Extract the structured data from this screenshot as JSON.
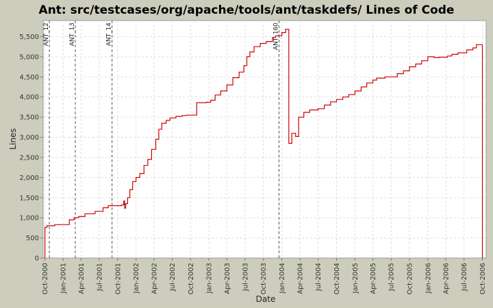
{
  "chart_data": {
    "type": "line",
    "title": "Ant: src/testcases/org/apache/tools/ant/taskdefs/ Lines of Code",
    "xlabel": "Date",
    "ylabel": "Lines",
    "ylim": [
      0,
      5900
    ],
    "xlim": [
      "2000-09-23",
      "2006-10-20"
    ],
    "yticks": [
      0,
      500,
      1000,
      1500,
      2000,
      2500,
      3000,
      3500,
      4000,
      4500,
      5000,
      5500
    ],
    "xticks": [
      "2000-10-01",
      "2001-01-01",
      "2001-04-01",
      "2001-07-01",
      "2001-10-01",
      "2002-01-01",
      "2002-04-01",
      "2002-07-01",
      "2002-10-01",
      "2003-01-01",
      "2003-04-01",
      "2003-07-01",
      "2003-10-01",
      "2004-01-01",
      "2004-04-01",
      "2004-07-01",
      "2004-10-01",
      "2005-01-01",
      "2005-04-01",
      "2005-07-01",
      "2005-10-01",
      "2006-01-01",
      "2006-04-01",
      "2006-07-01",
      "2006-10-01"
    ],
    "xtick_labels": [
      "Oct-2000",
      "Jan-2001",
      "Apr-2001",
      "Jul-2001",
      "Oct-2001",
      "Jan-2002",
      "Apr-2002",
      "Jul-2002",
      "Oct-2002",
      "Jan-2003",
      "Apr-2003",
      "Jul-2003",
      "Oct-2003",
      "Jan-2004",
      "Apr-2004",
      "Jul-2004",
      "Oct-2004",
      "Jan-2005",
      "Apr-2005",
      "Jul-2005",
      "Oct-2005",
      "Jan-2006",
      "Apr-2006",
      "Jul-2006",
      "Oct-2006"
    ],
    "grid": true,
    "line_color": "#cc0000",
    "marker_color": "#555555",
    "markers": [
      {
        "label": "ANT_12",
        "date": "2000-10-24"
      },
      {
        "label": "ANT_13",
        "date": "2001-03-03"
      },
      {
        "label": "ANT_14",
        "date": "2001-09-03"
      },
      {
        "label": "ANT_160",
        "date": "2003-12-18"
      }
    ],
    "series": [
      {
        "step": true,
        "points": [
          [
            "2000-10-02",
            0
          ],
          [
            "2000-10-02",
            760
          ],
          [
            "2000-10-12",
            800
          ],
          [
            "2000-11-20",
            830
          ],
          [
            "2001-02-01",
            950
          ],
          [
            "2001-02-25",
            1000
          ],
          [
            "2001-03-20",
            1030
          ],
          [
            "2001-04-20",
            1100
          ],
          [
            "2001-06-10",
            1160
          ],
          [
            "2001-07-20",
            1250
          ],
          [
            "2001-08-15",
            1300
          ],
          [
            "2001-10-20",
            1320
          ],
          [
            "2001-11-01",
            1420
          ],
          [
            "2001-11-05",
            1240
          ],
          [
            "2001-11-10",
            1350
          ],
          [
            "2001-11-20",
            1500
          ],
          [
            "2001-12-01",
            1700
          ],
          [
            "2001-12-15",
            1900
          ],
          [
            "2002-01-01",
            2000
          ],
          [
            "2002-01-20",
            2100
          ],
          [
            "2002-02-10",
            2300
          ],
          [
            "2002-03-01",
            2450
          ],
          [
            "2002-03-20",
            2700
          ],
          [
            "2002-04-10",
            2950
          ],
          [
            "2002-04-25",
            3200
          ],
          [
            "2002-05-10",
            3350
          ],
          [
            "2002-06-01",
            3420
          ],
          [
            "2002-06-20",
            3480
          ],
          [
            "2002-07-20",
            3520
          ],
          [
            "2002-08-20",
            3540
          ],
          [
            "2002-09-10",
            3550
          ],
          [
            "2002-11-01",
            3860
          ],
          [
            "2002-12-20",
            3870
          ],
          [
            "2003-01-10",
            3920
          ],
          [
            "2003-02-01",
            4050
          ],
          [
            "2003-03-01",
            4150
          ],
          [
            "2003-04-01",
            4300
          ],
          [
            "2003-05-01",
            4480
          ],
          [
            "2003-06-01",
            4620
          ],
          [
            "2003-06-25",
            4780
          ],
          [
            "2003-07-10",
            5000
          ],
          [
            "2003-07-25",
            5120
          ],
          [
            "2003-08-15",
            5250
          ],
          [
            "2003-09-15",
            5330
          ],
          [
            "2003-10-15",
            5380
          ],
          [
            "2003-11-15",
            5480
          ],
          [
            "2003-12-01",
            5520
          ],
          [
            "2004-01-01",
            5600
          ],
          [
            "2004-01-20",
            5680
          ],
          [
            "2004-02-05",
            2850
          ],
          [
            "2004-02-20",
            3100
          ],
          [
            "2004-03-10",
            3020
          ],
          [
            "2004-03-25",
            3500
          ],
          [
            "2004-04-20",
            3620
          ],
          [
            "2004-05-20",
            3680
          ],
          [
            "2004-07-01",
            3710
          ],
          [
            "2004-08-01",
            3800
          ],
          [
            "2004-09-01",
            3880
          ],
          [
            "2004-10-01",
            3940
          ],
          [
            "2004-11-01",
            4000
          ],
          [
            "2004-12-01",
            4060
          ],
          [
            "2005-01-01",
            4150
          ],
          [
            "2005-02-01",
            4250
          ],
          [
            "2005-03-01",
            4350
          ],
          [
            "2005-04-01",
            4420
          ],
          [
            "2005-04-20",
            4470
          ],
          [
            "2005-06-01",
            4500
          ],
          [
            "2005-08-01",
            4580
          ],
          [
            "2005-09-01",
            4650
          ],
          [
            "2005-10-01",
            4750
          ],
          [
            "2005-11-01",
            4820
          ],
          [
            "2005-12-01",
            4900
          ],
          [
            "2006-01-01",
            5000
          ],
          [
            "2006-02-01",
            4980
          ],
          [
            "2006-03-01",
            4990
          ],
          [
            "2006-04-10",
            5020
          ],
          [
            "2006-05-01",
            5060
          ],
          [
            "2006-06-01",
            5100
          ],
          [
            "2006-07-15",
            5170
          ],
          [
            "2006-08-15",
            5220
          ],
          [
            "2006-09-01",
            5300
          ],
          [
            "2006-10-01",
            5300
          ],
          [
            "2006-10-01",
            0
          ]
        ]
      }
    ]
  }
}
